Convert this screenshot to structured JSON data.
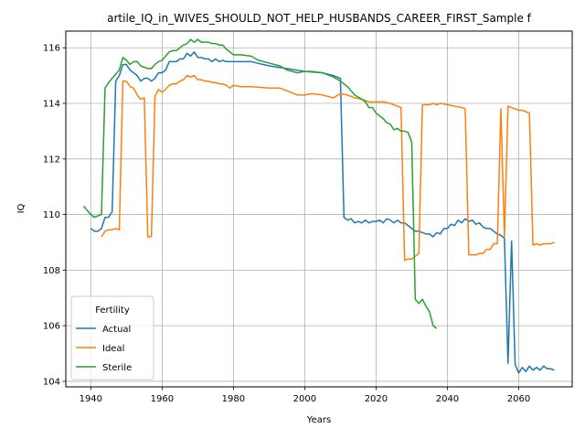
{
  "chart_data": {
    "type": "line",
    "title": "artile_IQ_in_WIVES_SHOULD_NOT_HELP_HUSBANDS_CAREER_FIRST_Sample f",
    "xlabel": "Years",
    "ylabel": "IQ",
    "xlim": [
      1933,
      2075
    ],
    "ylim": [
      103.8,
      116.6
    ],
    "xticks": [
      1940,
      1960,
      1980,
      2000,
      2020,
      2040,
      2060
    ],
    "yticks": [
      104,
      106,
      108,
      110,
      112,
      114,
      116
    ],
    "grid": true,
    "legend": {
      "title": "Fertility",
      "placement": "lower-left"
    },
    "series": [
      {
        "name": "Actual",
        "color": "#1f77b4",
        "points": [
          [
            1940,
            109.5
          ],
          [
            1941,
            109.4
          ],
          [
            1942,
            109.4
          ],
          [
            1943,
            109.5
          ],
          [
            1944,
            109.9
          ],
          [
            1945,
            109.9
          ],
          [
            1946,
            110.1
          ],
          [
            1947,
            114.8
          ],
          [
            1948,
            115.0
          ],
          [
            1949,
            115.4
          ],
          [
            1950,
            115.4
          ],
          [
            1951,
            115.2
          ],
          [
            1952,
            115.1
          ],
          [
            1953,
            115.0
          ],
          [
            1954,
            114.8
          ],
          [
            1955,
            114.9
          ],
          [
            1956,
            114.9
          ],
          [
            1957,
            114.8
          ],
          [
            1958,
            114.9
          ],
          [
            1959,
            115.1
          ],
          [
            1960,
            115.1
          ],
          [
            1961,
            115.2
          ],
          [
            1962,
            115.5
          ],
          [
            1963,
            115.5
          ],
          [
            1964,
            115.5
          ],
          [
            1965,
            115.6
          ],
          [
            1966,
            115.6
          ],
          [
            1967,
            115.8
          ],
          [
            1968,
            115.7
          ],
          [
            1969,
            115.85
          ],
          [
            1970,
            115.65
          ],
          [
            1971,
            115.65
          ],
          [
            1972,
            115.6
          ],
          [
            1973,
            115.6
          ],
          [
            1974,
            115.5
          ],
          [
            1975,
            115.6
          ],
          [
            1976,
            115.5
          ],
          [
            1977,
            115.55
          ],
          [
            1978,
            115.5
          ],
          [
            1980,
            115.5
          ],
          [
            1985,
            115.5
          ],
          [
            1990,
            115.35
          ],
          [
            1995,
            115.25
          ],
          [
            2000,
            115.15
          ],
          [
            2005,
            115.1
          ],
          [
            2008,
            115.0
          ],
          [
            2010,
            114.9
          ],
          [
            2011,
            109.9
          ],
          [
            2012,
            109.8
          ],
          [
            2013,
            109.85
          ],
          [
            2014,
            109.7
          ],
          [
            2015,
            109.75
          ],
          [
            2016,
            109.7
          ],
          [
            2017,
            109.8
          ],
          [
            2018,
            109.7
          ],
          [
            2019,
            109.75
          ],
          [
            2020,
            109.75
          ],
          [
            2021,
            109.8
          ],
          [
            2022,
            109.7
          ],
          [
            2023,
            109.85
          ],
          [
            2024,
            109.8
          ],
          [
            2025,
            109.7
          ],
          [
            2026,
            109.8
          ],
          [
            2027,
            109.7
          ],
          [
            2028,
            109.7
          ],
          [
            2029,
            109.6
          ],
          [
            2030,
            109.5
          ],
          [
            2031,
            109.4
          ],
          [
            2032,
            109.4
          ],
          [
            2033,
            109.35
          ],
          [
            2034,
            109.3
          ],
          [
            2035,
            109.3
          ],
          [
            2036,
            109.2
          ],
          [
            2037,
            109.35
          ],
          [
            2038,
            109.3
          ],
          [
            2039,
            109.5
          ],
          [
            2040,
            109.5
          ],
          [
            2041,
            109.65
          ],
          [
            2042,
            109.6
          ],
          [
            2043,
            109.8
          ],
          [
            2044,
            109.7
          ],
          [
            2045,
            109.85
          ],
          [
            2046,
            109.75
          ],
          [
            2047,
            109.8
          ],
          [
            2048,
            109.65
          ],
          [
            2049,
            109.7
          ],
          [
            2050,
            109.55
          ],
          [
            2051,
            109.5
          ],
          [
            2052,
            109.5
          ],
          [
            2053,
            109.4
          ],
          [
            2054,
            109.3
          ],
          [
            2055,
            109.25
          ],
          [
            2056,
            109.15
          ],
          [
            2057,
            104.65
          ],
          [
            2058,
            109.05
          ],
          [
            2059,
            104.6
          ],
          [
            2060,
            104.3
          ],
          [
            2061,
            104.5
          ],
          [
            2062,
            104.35
          ],
          [
            2063,
            104.55
          ],
          [
            2064,
            104.4
          ],
          [
            2065,
            104.5
          ],
          [
            2066,
            104.4
          ],
          [
            2067,
            104.55
          ],
          [
            2068,
            104.45
          ],
          [
            2069,
            104.45
          ],
          [
            2070,
            104.4
          ]
        ]
      },
      {
        "name": "Ideal",
        "color": "#ff7f0e",
        "points": [
          [
            1943,
            109.2
          ],
          [
            1944,
            109.4
          ],
          [
            1945,
            109.45
          ],
          [
            1946,
            109.45
          ],
          [
            1947,
            109.5
          ],
          [
            1948,
            109.45
          ],
          [
            1949,
            114.8
          ],
          [
            1950,
            114.8
          ],
          [
            1951,
            114.6
          ],
          [
            1952,
            114.55
          ],
          [
            1953,
            114.3
          ],
          [
            1954,
            114.15
          ],
          [
            1955,
            114.2
          ],
          [
            1956,
            109.2
          ],
          [
            1957,
            109.2
          ],
          [
            1958,
            114.25
          ],
          [
            1959,
            114.5
          ],
          [
            1960,
            114.4
          ],
          [
            1961,
            114.5
          ],
          [
            1962,
            114.65
          ],
          [
            1963,
            114.7
          ],
          [
            1964,
            114.7
          ],
          [
            1965,
            114.8
          ],
          [
            1966,
            114.85
          ],
          [
            1967,
            115.0
          ],
          [
            1968,
            114.95
          ],
          [
            1969,
            115.0
          ],
          [
            1970,
            114.85
          ],
          [
            1971,
            114.85
          ],
          [
            1972,
            114.8
          ],
          [
            1973,
            114.8
          ],
          [
            1974,
            114.75
          ],
          [
            1975,
            114.75
          ],
          [
            1976,
            114.7
          ],
          [
            1977,
            114.7
          ],
          [
            1978,
            114.65
          ],
          [
            1979,
            114.55
          ],
          [
            1980,
            114.65
          ],
          [
            1982,
            114.6
          ],
          [
            1985,
            114.6
          ],
          [
            1990,
            114.55
          ],
          [
            1993,
            114.55
          ],
          [
            1995,
            114.45
          ],
          [
            1998,
            114.3
          ],
          [
            2000,
            114.3
          ],
          [
            2002,
            114.35
          ],
          [
            2005,
            114.3
          ],
          [
            2008,
            114.2
          ],
          [
            2010,
            114.35
          ],
          [
            2012,
            114.3
          ],
          [
            2014,
            114.2
          ],
          [
            2016,
            114.15
          ],
          [
            2018,
            114.05
          ],
          [
            2020,
            114.05
          ],
          [
            2022,
            114.05
          ],
          [
            2024,
            114.0
          ],
          [
            2026,
            113.9
          ],
          [
            2027,
            113.85
          ],
          [
            2028,
            108.35
          ],
          [
            2029,
            108.4
          ],
          [
            2030,
            108.4
          ],
          [
            2031,
            108.5
          ],
          [
            2032,
            108.6
          ],
          [
            2033,
            113.95
          ],
          [
            2034,
            113.95
          ],
          [
            2035,
            113.95
          ],
          [
            2036,
            114.0
          ],
          [
            2037,
            113.95
          ],
          [
            2038,
            114.0
          ],
          [
            2040,
            113.95
          ],
          [
            2042,
            113.9
          ],
          [
            2044,
            113.85
          ],
          [
            2045,
            113.8
          ],
          [
            2046,
            108.55
          ],
          [
            2047,
            108.55
          ],
          [
            2048,
            108.55
          ],
          [
            2049,
            108.6
          ],
          [
            2050,
            108.6
          ],
          [
            2051,
            108.75
          ],
          [
            2052,
            108.75
          ],
          [
            2053,
            108.95
          ],
          [
            2054,
            108.95
          ],
          [
            2055,
            113.8
          ],
          [
            2056,
            109.2
          ],
          [
            2057,
            113.9
          ],
          [
            2058,
            113.85
          ],
          [
            2059,
            113.8
          ],
          [
            2060,
            113.75
          ],
          [
            2061,
            113.75
          ],
          [
            2062,
            113.7
          ],
          [
            2063,
            113.65
          ],
          [
            2064,
            108.9
          ],
          [
            2065,
            108.95
          ],
          [
            2066,
            108.9
          ],
          [
            2067,
            108.95
          ],
          [
            2068,
            108.95
          ],
          [
            2069,
            108.95
          ],
          [
            2070,
            109.0
          ]
        ]
      },
      {
        "name": "Sterile",
        "color": "#2ca02c",
        "points": [
          [
            1938,
            110.3
          ],
          [
            1939,
            110.15
          ],
          [
            1940,
            110.0
          ],
          [
            1941,
            109.9
          ],
          [
            1942,
            109.95
          ],
          [
            1943,
            110.0
          ],
          [
            1944,
            114.55
          ],
          [
            1945,
            114.75
          ],
          [
            1946,
            114.9
          ],
          [
            1947,
            115.05
          ],
          [
            1948,
            115.2
          ],
          [
            1949,
            115.65
          ],
          [
            1950,
            115.55
          ],
          [
            1951,
            115.4
          ],
          [
            1952,
            115.5
          ],
          [
            1953,
            115.5
          ],
          [
            1954,
            115.35
          ],
          [
            1955,
            115.3
          ],
          [
            1956,
            115.25
          ],
          [
            1957,
            115.25
          ],
          [
            1958,
            115.4
          ],
          [
            1959,
            115.5
          ],
          [
            1960,
            115.55
          ],
          [
            1961,
            115.7
          ],
          [
            1962,
            115.85
          ],
          [
            1963,
            115.9
          ],
          [
            1964,
            115.9
          ],
          [
            1965,
            116.0
          ],
          [
            1966,
            116.1
          ],
          [
            1967,
            116.15
          ],
          [
            1968,
            116.3
          ],
          [
            1969,
            116.2
          ],
          [
            1970,
            116.3
          ],
          [
            1971,
            116.2
          ],
          [
            1972,
            116.2
          ],
          [
            1973,
            116.2
          ],
          [
            1974,
            116.15
          ],
          [
            1975,
            116.15
          ],
          [
            1976,
            116.1
          ],
          [
            1977,
            116.1
          ],
          [
            1978,
            115.95
          ],
          [
            1979,
            115.85
          ],
          [
            1980,
            115.75
          ],
          [
            1982,
            115.75
          ],
          [
            1985,
            115.7
          ],
          [
            1987,
            115.55
          ],
          [
            1990,
            115.45
          ],
          [
            1993,
            115.35
          ],
          [
            1995,
            115.2
          ],
          [
            1998,
            115.1
          ],
          [
            2000,
            115.15
          ],
          [
            2002,
            115.15
          ],
          [
            2005,
            115.1
          ],
          [
            2008,
            114.95
          ],
          [
            2010,
            114.8
          ],
          [
            2012,
            114.6
          ],
          [
            2014,
            114.3
          ],
          [
            2016,
            114.15
          ],
          [
            2017,
            114.05
          ],
          [
            2018,
            113.85
          ],
          [
            2019,
            113.85
          ],
          [
            2020,
            113.65
          ],
          [
            2021,
            113.55
          ],
          [
            2022,
            113.45
          ],
          [
            2023,
            113.3
          ],
          [
            2024,
            113.25
          ],
          [
            2025,
            113.05
          ],
          [
            2026,
            113.1
          ],
          [
            2027,
            113.0
          ],
          [
            2028,
            113.0
          ],
          [
            2029,
            112.95
          ],
          [
            2030,
            112.6
          ],
          [
            2031,
            106.95
          ],
          [
            2032,
            106.8
          ],
          [
            2033,
            106.95
          ],
          [
            2034,
            106.7
          ],
          [
            2035,
            106.5
          ],
          [
            2036,
            106.0
          ],
          [
            2037,
            105.9
          ]
        ]
      }
    ]
  }
}
